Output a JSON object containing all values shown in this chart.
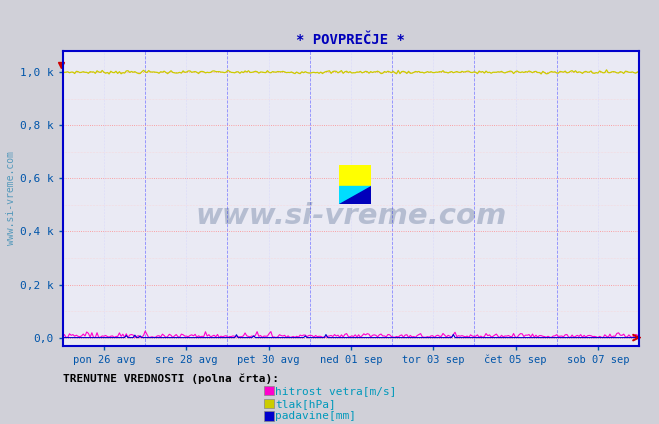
{
  "title": "* POVPREČJE *",
  "bg_color": "#d0d0d8",
  "plot_bg_color": "#eaeaf4",
  "grid_color_major_h": "#ff8888",
  "grid_color_major_v": "#8888ff",
  "grid_color_minor": "#ffcccc",
  "grid_color_minor_v": "#ccccff",
  "x_tick_labels": [
    "pon 26 avg",
    "sre 28 avg",
    "pet 30 avg",
    "ned 01 sep",
    "tor 03 sep",
    "čet 05 sep",
    "sob 07 sep"
  ],
  "y_tick_labels": [
    "0,0",
    "0,2 k",
    "0,4 k",
    "0,6 k",
    "0,8 k",
    "1,0 k"
  ],
  "y_tick_values": [
    0.0,
    0.2,
    0.4,
    0.6,
    0.8,
    1.0
  ],
  "ylim": [
    -0.03,
    1.08
  ],
  "xlim": [
    0,
    1
  ],
  "ylabel_text": "www.si-vreme.com",
  "watermark_text": "www.si-vreme.com",
  "legend_label": "TRENUTNE VREDNOSTI (polna črta):",
  "legend_items": [
    {
      "label": "hitrost vetra[m/s]",
      "color": "#ff00cc"
    },
    {
      "label": "tlak[hPa]",
      "color": "#cccc00"
    },
    {
      "label": "padavine[mm]",
      "color": "#0000cc"
    }
  ],
  "title_color": "#0000bb",
  "border_color": "#0000cc",
  "axis_arrow_color": "#cc0000",
  "tick_label_color": "#0055aa",
  "ylabel_color": "#5599bb",
  "legend_title_color": "#000000",
  "legend_text_color": "#0099bb",
  "n_points": 336,
  "tlak_value": 1.0,
  "tlak_noise": 0.003,
  "hitrost_noise": 0.008,
  "logo_colors": [
    "#ffff00",
    "#00ddff",
    "#0000bb"
  ],
  "watermark_color": "#1a3a6a",
  "watermark_alpha": 0.25
}
